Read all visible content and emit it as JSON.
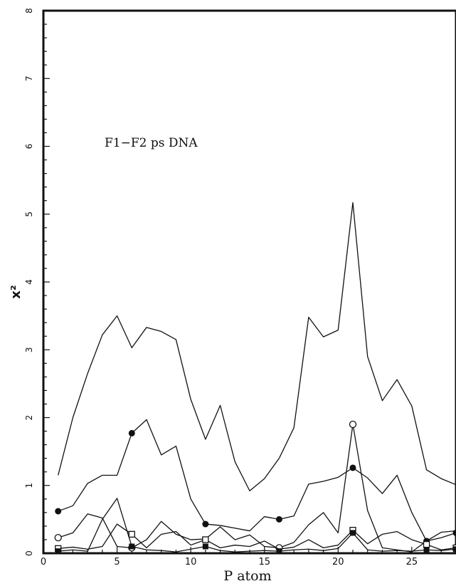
{
  "chart_data": {
    "type": "line",
    "annotation": "F1−F2 ps DNA",
    "xlabel": "P atom",
    "ylabel": "x²",
    "xlim": [
      0,
      28
    ],
    "ylim": [
      0,
      8
    ],
    "xticks": [
      0,
      5,
      10,
      15,
      20,
      25
    ],
    "yticks": [
      0,
      1,
      2,
      3,
      4,
      5,
      6,
      7,
      8
    ],
    "grid": false,
    "x": [
      1,
      2,
      3,
      4,
      5,
      6,
      7,
      8,
      9,
      10,
      11,
      12,
      13,
      14,
      15,
      16,
      17,
      18,
      19,
      20,
      21,
      22,
      23,
      24,
      25,
      26,
      27,
      28
    ],
    "series": [
      {
        "marker": "none",
        "values": [
          1.15,
          2.0,
          2.65,
          3.22,
          3.5,
          3.03,
          3.33,
          3.27,
          3.15,
          2.27,
          1.68,
          2.18,
          1.35,
          0.92,
          1.1,
          1.4,
          1.85,
          3.48,
          3.19,
          3.29,
          5.17,
          2.9,
          2.25,
          2.56,
          2.17,
          1.23,
          1.1,
          1.01
        ]
      },
      {
        "marker": "filled-circle",
        "marker_every": [
          1,
          6,
          11,
          16,
          21,
          26,
          28
        ],
        "values": [
          0.62,
          0.7,
          1.03,
          1.15,
          1.15,
          1.77,
          1.97,
          1.45,
          1.58,
          0.8,
          0.43,
          0.41,
          0.37,
          0.33,
          0.54,
          0.5,
          0.55,
          1.02,
          1.06,
          1.12,
          1.26,
          1.11,
          0.88,
          1.15,
          0.6,
          0.18,
          0.23,
          0.3
        ]
      },
      {
        "marker": "open-circle",
        "marker_every": [
          1,
          6,
          16,
          21
        ],
        "values": [
          0.23,
          0.3,
          0.58,
          0.52,
          0.1,
          0.08,
          0.2,
          0.47,
          0.28,
          0.2,
          0.21,
          0.39,
          0.2,
          0.27,
          0.1,
          0.08,
          0.16,
          0.42,
          0.6,
          0.3,
          1.9,
          0.63,
          0.08,
          0.05,
          0.02,
          0.18,
          0.31,
          0.33
        ]
      },
      {
        "marker": "open-square",
        "marker_every": [
          1,
          6,
          11,
          21,
          26,
          28
        ],
        "values": [
          0.07,
          0.09,
          0.06,
          0.1,
          0.43,
          0.28,
          0.08,
          0.28,
          0.32,
          0.12,
          0.2,
          0.08,
          0.12,
          0.1,
          0.18,
          0.06,
          0.09,
          0.2,
          0.08,
          0.12,
          0.34,
          0.14,
          0.28,
          0.32,
          0.2,
          0.13,
          0.05,
          0.08
        ]
      },
      {
        "marker": "filled-square",
        "marker_every": [
          1,
          6,
          11,
          16,
          21,
          26,
          28
        ],
        "values": [
          0.03,
          0.05,
          0.03,
          0.5,
          0.81,
          0.1,
          0.05,
          0.04,
          0.02,
          0.06,
          0.1,
          0.04,
          0.02,
          0.03,
          0.04,
          0.03,
          0.05,
          0.06,
          0.04,
          0.07,
          0.3,
          0.05,
          0.03,
          0.04,
          0.03,
          0.05,
          0.04,
          0.06
        ]
      }
    ]
  }
}
